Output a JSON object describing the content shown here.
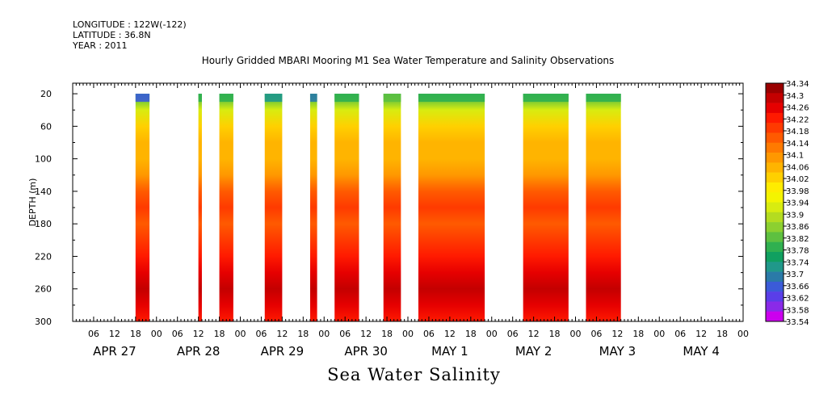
{
  "header": {
    "longitude": "LONGITUDE : 122W(-122)",
    "latitude": "LATITUDE : 36.8N",
    "year": "YEAR : 2011"
  },
  "chart_data": {
    "type": "heatmap",
    "title": "Hourly Gridded MBARI Mooring M1 Sea Water Temperature and Salinity Observations",
    "bottom_title": "Sea Water Salinity",
    "ylabel": "DEPTH (m)",
    "y_ticks": [
      20,
      60,
      100,
      140,
      180,
      220,
      260,
      300
    ],
    "ylim": [
      300,
      0
    ],
    "x_range_hours": [
      0,
      192
    ],
    "x_hour_ticks": [
      "06",
      "12",
      "18",
      "00",
      "06",
      "12",
      "18",
      "00",
      "06",
      "12",
      "18",
      "00",
      "06",
      "12",
      "18",
      "00",
      "06",
      "12",
      "18",
      "00",
      "06",
      "12",
      "18",
      "00",
      "06",
      "12",
      "18",
      "00",
      "06",
      "12",
      "18",
      "00"
    ],
    "x_day_labels": [
      "APR 27",
      "APR 28",
      "APR 29",
      "APR 30",
      "MAY  1",
      "MAY  2",
      "MAY  3",
      "MAY  4"
    ],
    "colorbar_labels": [
      "34.34",
      "34.3",
      "34.26",
      "34.22",
      "34.18",
      "34.14",
      "34.1",
      "34.06",
      "34.02",
      "33.98",
      "33.94",
      "33.9",
      "33.86",
      "33.82",
      "33.78",
      "33.74",
      "33.7",
      "33.66",
      "33.62",
      "33.58",
      "33.54"
    ],
    "colorbar_colors": [
      "#9a0000",
      "#c40000",
      "#e60000",
      "#ff1a00",
      "#ff3a00",
      "#ff5a00",
      "#ff7a00",
      "#ff9800",
      "#ffb400",
      "#ffd000",
      "#ffec00",
      "#f4f400",
      "#d8ec10",
      "#b4dc20",
      "#8cd030",
      "#5ec040",
      "#30b050",
      "#10a060",
      "#20988a",
      "#2a7aa8",
      "#3b5bd8",
      "#5a3ee8",
      "#8a2ae8",
      "#cc00ee"
    ],
    "depth_profile": [
      {
        "depth": 20,
        "value": 33.8
      },
      {
        "depth": 40,
        "value": 33.92
      },
      {
        "depth": 60,
        "value": 34.02
      },
      {
        "depth": 80,
        "value": 34.06
      },
      {
        "depth": 100,
        "value": 34.07
      },
      {
        "depth": 120,
        "value": 34.1
      },
      {
        "depth": 140,
        "value": 34.15
      },
      {
        "depth": 160,
        "value": 34.18
      },
      {
        "depth": 180,
        "value": 34.17
      },
      {
        "depth": 200,
        "value": 34.18
      },
      {
        "depth": 220,
        "value": 34.22
      },
      {
        "depth": 240,
        "value": 34.27
      },
      {
        "depth": 260,
        "value": 34.3
      },
      {
        "depth": 280,
        "value": 34.27
      },
      {
        "depth": 300,
        "value": 34.24
      }
    ],
    "data_segments": [
      {
        "start_hour": 18,
        "end_hour": 22,
        "surface_value": 33.66
      },
      {
        "start_hour": 36,
        "end_hour": 37,
        "surface_value": 33.8
      },
      {
        "start_hour": 42,
        "end_hour": 46,
        "surface_value": 33.78
      },
      {
        "start_hour": 55,
        "end_hour": 60,
        "surface_value": 33.72
      },
      {
        "start_hour": 68,
        "end_hour": 70,
        "surface_value": 33.7
      },
      {
        "start_hour": 75,
        "end_hour": 82,
        "surface_value": 33.8
      },
      {
        "start_hour": 89,
        "end_hour": 94,
        "surface_value": 33.82
      },
      {
        "start_hour": 99,
        "end_hour": 118,
        "surface_value": 33.8
      },
      {
        "start_hour": 129,
        "end_hour": 142,
        "surface_value": 33.8
      },
      {
        "start_hour": 147,
        "end_hour": 157,
        "surface_value": 33.8
      }
    ]
  }
}
